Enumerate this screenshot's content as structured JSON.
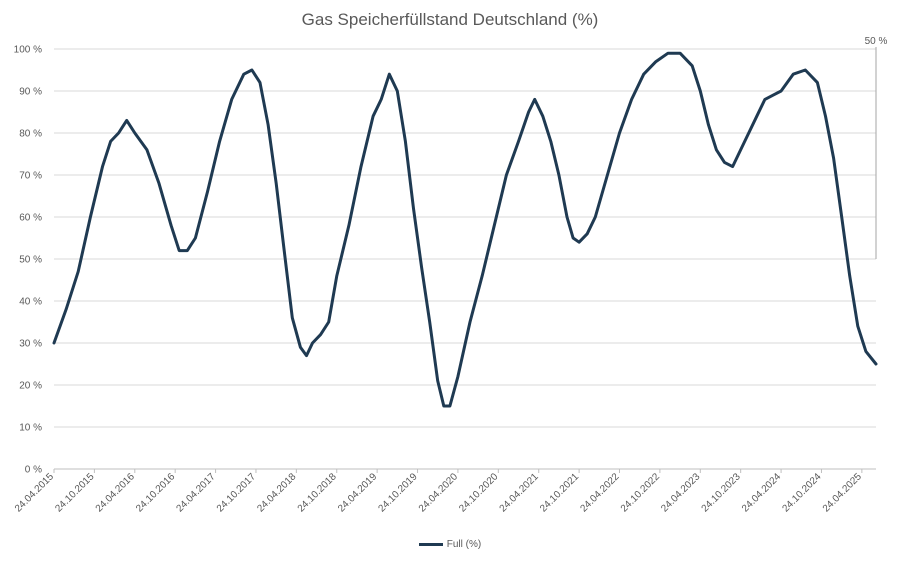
{
  "chart_data": {
    "type": "line",
    "title": "Gas Speicherfüllstand Deutschland (%)",
    "xlabel": "",
    "ylabel": "",
    "ylim": [
      0,
      100
    ],
    "y_ticks": [
      "0 %",
      "10 %",
      "20 %",
      "30 %",
      "40 %",
      "50 %",
      "60 %",
      "70 %",
      "80 %",
      "90 %",
      "100 %"
    ],
    "x_ticks": [
      "24.04.2015",
      "24.10.2015",
      "24.04.2016",
      "24.10.2016",
      "24.04.2017",
      "24.10.2017",
      "24.04.2018",
      "24.10.2018",
      "24.04.2019",
      "24.10.2019",
      "24.04.2020",
      "24.10.2020",
      "24.04.2021",
      "24.10.2021",
      "24.04.2022",
      "24.10.2022",
      "24.04.2023",
      "24.10.2023",
      "24.04.2024",
      "24.10.2024",
      "24.04.2025"
    ],
    "grid": true,
    "legend_position": "bottom",
    "annotation": {
      "text": "50 %",
      "t": 20.35,
      "y": 50
    },
    "series": [
      {
        "name": "Full (%)",
        "color": "#1f3a52",
        "points": [
          [
            0.0,
            30
          ],
          [
            0.3,
            38
          ],
          [
            0.6,
            47
          ],
          [
            0.9,
            60
          ],
          [
            1.2,
            72
          ],
          [
            1.4,
            78
          ],
          [
            1.6,
            80
          ],
          [
            1.8,
            83
          ],
          [
            2.0,
            80
          ],
          [
            2.3,
            76
          ],
          [
            2.6,
            68
          ],
          [
            2.9,
            58
          ],
          [
            3.1,
            52
          ],
          [
            3.3,
            52
          ],
          [
            3.5,
            55
          ],
          [
            3.8,
            66
          ],
          [
            4.1,
            78
          ],
          [
            4.4,
            88
          ],
          [
            4.7,
            94
          ],
          [
            4.9,
            95
          ],
          [
            5.1,
            92
          ],
          [
            5.3,
            82
          ],
          [
            5.5,
            68
          ],
          [
            5.7,
            52
          ],
          [
            5.9,
            36
          ],
          [
            6.1,
            29
          ],
          [
            6.25,
            27
          ],
          [
            6.4,
            30
          ],
          [
            6.6,
            32
          ],
          [
            6.8,
            35
          ],
          [
            7.0,
            46
          ],
          [
            7.3,
            58
          ],
          [
            7.6,
            72
          ],
          [
            7.9,
            84
          ],
          [
            8.1,
            88
          ],
          [
            8.3,
            94
          ],
          [
            8.5,
            90
          ],
          [
            8.7,
            78
          ],
          [
            8.9,
            62
          ],
          [
            9.1,
            48
          ],
          [
            9.3,
            35
          ],
          [
            9.5,
            21
          ],
          [
            9.65,
            15
          ],
          [
            9.8,
            15
          ],
          [
            10.0,
            22
          ],
          [
            10.3,
            35
          ],
          [
            10.6,
            46
          ],
          [
            10.9,
            58
          ],
          [
            11.2,
            70
          ],
          [
            11.5,
            78
          ],
          [
            11.75,
            85
          ],
          [
            11.9,
            88
          ],
          [
            12.1,
            84
          ],
          [
            12.3,
            78
          ],
          [
            12.5,
            70
          ],
          [
            12.7,
            60
          ],
          [
            12.85,
            55
          ],
          [
            13.0,
            54
          ],
          [
            13.2,
            56
          ],
          [
            13.4,
            60
          ],
          [
            13.7,
            70
          ],
          [
            14.0,
            80
          ],
          [
            14.3,
            88
          ],
          [
            14.6,
            94
          ],
          [
            14.9,
            97
          ],
          [
            15.2,
            99
          ],
          [
            15.5,
            99
          ],
          [
            15.8,
            96
          ],
          [
            16.0,
            90
          ],
          [
            16.2,
            82
          ],
          [
            16.4,
            76
          ],
          [
            16.6,
            73
          ],
          [
            16.8,
            72
          ],
          [
            17.1,
            78
          ],
          [
            17.4,
            84
          ],
          [
            17.6,
            88
          ],
          [
            17.8,
            89
          ],
          [
            18.0,
            90
          ],
          [
            18.3,
            94
          ],
          [
            18.6,
            95
          ],
          [
            18.9,
            92
          ],
          [
            19.1,
            84
          ],
          [
            19.3,
            74
          ],
          [
            19.5,
            60
          ],
          [
            19.7,
            46
          ],
          [
            19.9,
            34
          ],
          [
            20.1,
            28
          ],
          [
            20.35,
            25
          ]
        ]
      }
    ]
  }
}
